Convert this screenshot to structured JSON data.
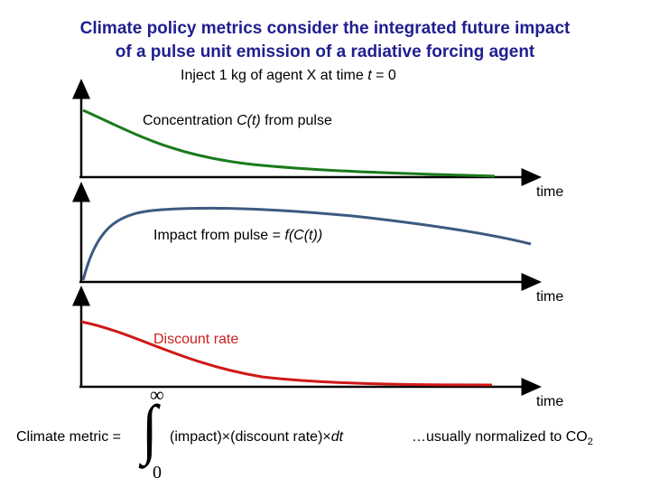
{
  "title": {
    "line1": "Climate policy metrics consider the integrated future impact",
    "line2": "of a pulse unit emission of a radiative forcing agent"
  },
  "subtitle": {
    "prefix": "Inject 1 kg of agent X at time ",
    "var": "t",
    "suffix": " = 0"
  },
  "panels": [
    {
      "label_prefix": "Concentration ",
      "label_italic": "C(t)",
      "label_suffix": " from pulse",
      "axis_label": "time",
      "curve_color": "#1a7a1a",
      "shape": "exponential decay"
    },
    {
      "label_prefix": "Impact from pulse = ",
      "label_italic": "f(C(t))",
      "label_suffix": "",
      "axis_label": "time",
      "curve_color": "#3d5a80",
      "shape": "rise then slow decline"
    },
    {
      "label_prefix": "Discount rate",
      "label_italic": "",
      "label_suffix": "",
      "axis_label": "time",
      "curve_color": "#d01818",
      "shape": "exponential decay"
    }
  ],
  "formula": {
    "lhs": "Climate metric =",
    "upper_limit": "∞",
    "lower_limit": "0",
    "integral": "∫",
    "integrand_a": "(impact)",
    "times1": "×",
    "integrand_b": "(discount rate)",
    "times2": "×",
    "differential": "dt",
    "note_prefix": "…usually normalized to CO",
    "note_sub": "2"
  }
}
